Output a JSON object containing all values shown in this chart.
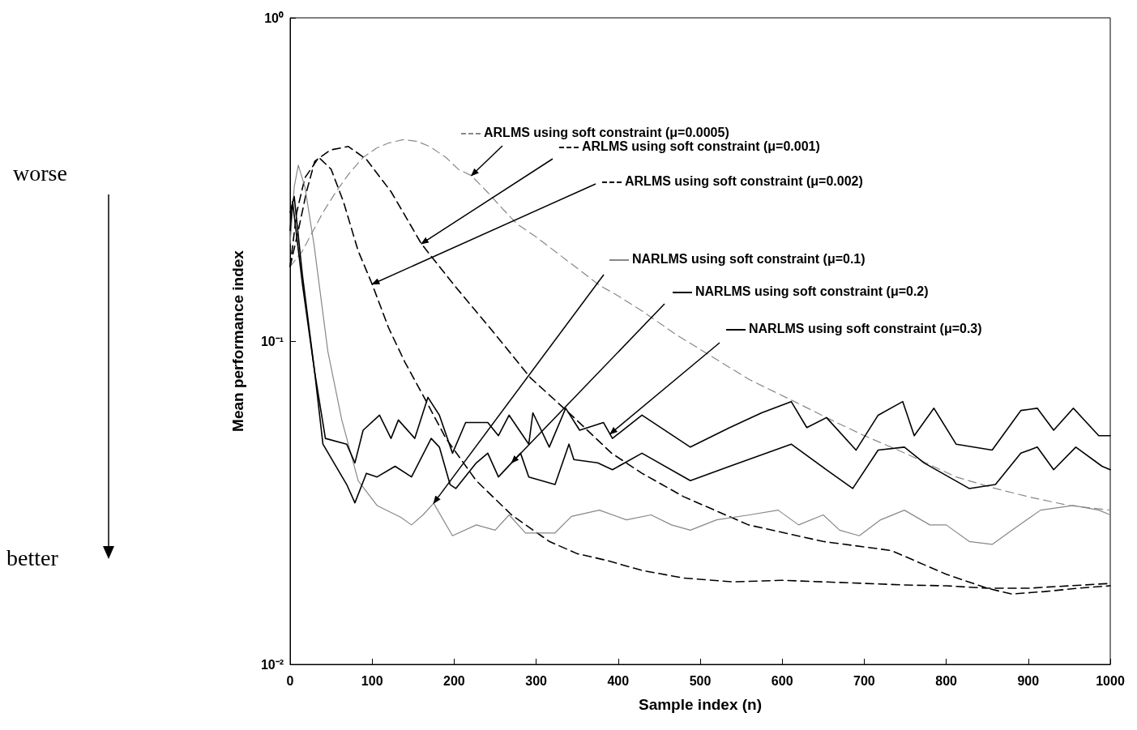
{
  "chart_data": {
    "type": "line",
    "xlabel": "Sample index (n)",
    "ylabel": "Mean performance index",
    "log": "y",
    "xlim": [
      0,
      1000
    ],
    "xticks": [
      0,
      100,
      200,
      300,
      400,
      500,
      600,
      700,
      800,
      900,
      1000
    ],
    "ylim": [
      0.01,
      1
    ],
    "yticks": [
      {
        "value": 0.01,
        "label": "10⁻²"
      },
      {
        "value": 0.1,
        "label": "10⁻¹"
      },
      {
        "value": 1,
        "label": "10⁰"
      }
    ],
    "annotations": [
      "worse",
      "better"
    ],
    "legend": "top right",
    "series": [
      {
        "name": "ARLMS using soft constraint (μ=0.0005)",
        "color": "#888888",
        "line_style": "dashed",
        "x": [
          0,
          15,
          27,
          40,
          56,
          72,
          89,
          105,
          120,
          138,
          155,
          170,
          190,
          205,
          221,
          240,
          260,
          277,
          300,
          326,
          350,
          377,
          400,
          429,
          470,
          516,
          560,
          615,
          660,
          700,
          750,
          812,
          860,
          900,
          950,
          1000
        ],
        "values": [
          0.17,
          0.19,
          0.217,
          0.25,
          0.29,
          0.33,
          0.37,
          0.395,
          0.41,
          0.42,
          0.415,
          0.4,
          0.37,
          0.34,
          0.325,
          0.29,
          0.255,
          0.23,
          0.21,
          0.187,
          0.168,
          0.149,
          0.138,
          0.124,
          0.105,
          0.089,
          0.076,
          0.065,
          0.057,
          0.051,
          0.045,
          0.038,
          0.035,
          0.033,
          0.031,
          0.03
        ]
      },
      {
        "name": "ARLMS using soft constraint (μ=0.001)",
        "color": "#000000",
        "line_style": "dashed",
        "x": [
          0,
          10,
          20,
          30,
          49,
          71,
          93,
          123,
          142,
          160,
          200,
          250,
          293,
          340,
          392,
          429,
          480,
          559,
          650,
          733,
          800,
          850,
          880,
          920,
          960,
          1000
        ],
        "values": [
          0.17,
          0.22,
          0.29,
          0.36,
          0.39,
          0.4,
          0.365,
          0.29,
          0.24,
          0.2,
          0.149,
          0.105,
          0.077,
          0.06,
          0.045,
          0.039,
          0.033,
          0.027,
          0.024,
          0.0225,
          0.019,
          0.0172,
          0.0165,
          0.0168,
          0.0172,
          0.0175
        ]
      },
      {
        "name": "ARLMS using soft constraint (μ=0.002)",
        "color": "#000000",
        "line_style": "dashed",
        "x": [
          0,
          8,
          18,
          35,
          50,
          65,
          83,
          100,
          120,
          140,
          162,
          190,
          227,
          270,
          316,
          350,
          385,
          430,
          480,
          540,
          600,
          650,
          700,
          750,
          800,
          850,
          900,
          950,
          1000
        ],
        "values": [
          0.17,
          0.25,
          0.32,
          0.37,
          0.34,
          0.27,
          0.19,
          0.15,
          0.11,
          0.086,
          0.068,
          0.05,
          0.037,
          0.029,
          0.024,
          0.022,
          0.021,
          0.0195,
          0.0185,
          0.018,
          0.0182,
          0.018,
          0.0178,
          0.0176,
          0.0175,
          0.0172,
          0.0172,
          0.0175,
          0.0178
        ]
      },
      {
        "name": "NARLMS using soft constraint (μ=0.1)",
        "color": "#888888",
        "line_style": "solid",
        "x": [
          0,
          5,
          10,
          18,
          29,
          46,
          63,
          83,
          106,
          135,
          148,
          162,
          175,
          198,
          227,
          250,
          267,
          287,
          323,
          343,
          377,
          410,
          440,
          465,
          488,
          520,
          560,
          595,
          620,
          650,
          670,
          694,
          720,
          749,
          780,
          800,
          828,
          856,
          880,
          915,
          955,
          986,
          1000
        ],
        "values": [
          0.2,
          0.3,
          0.35,
          0.3,
          0.2,
          0.093,
          0.057,
          0.037,
          0.031,
          0.0285,
          0.027,
          0.029,
          0.0315,
          0.025,
          0.027,
          0.026,
          0.029,
          0.0255,
          0.0255,
          0.0287,
          0.03,
          0.028,
          0.029,
          0.027,
          0.026,
          0.028,
          0.029,
          0.03,
          0.027,
          0.029,
          0.026,
          0.025,
          0.028,
          0.03,
          0.027,
          0.027,
          0.024,
          0.0235,
          0.026,
          0.03,
          0.031,
          0.03,
          0.029
        ]
      },
      {
        "name": "NARLMS using soft constraint (μ=0.2)",
        "color": "#000000",
        "line_style": "solid",
        "x": [
          0,
          3,
          15,
          30,
          40,
          69,
          79,
          93,
          106,
          128,
          148,
          172,
          182,
          195,
          202,
          227,
          241,
          254,
          281,
          291,
          323,
          340,
          346,
          375,
          393,
          429,
          488,
          536,
          611,
          654,
          686,
          717,
          749,
          773,
          828,
          860,
          891,
          911,
          931,
          958,
          990,
          1000
        ],
        "values": [
          0.22,
          0.27,
          0.15,
          0.08,
          0.048,
          0.036,
          0.0316,
          0.039,
          0.038,
          0.041,
          0.038,
          0.05,
          0.047,
          0.036,
          0.035,
          0.042,
          0.045,
          0.038,
          0.045,
          0.038,
          0.036,
          0.048,
          0.043,
          0.042,
          0.04,
          0.045,
          0.037,
          0.041,
          0.048,
          0.04,
          0.035,
          0.046,
          0.047,
          0.042,
          0.035,
          0.036,
          0.045,
          0.047,
          0.04,
          0.047,
          0.041,
          0.04
        ]
      },
      {
        "name": "NARLMS using soft constraint (μ=0.3)",
        "color": "#000000",
        "line_style": "solid",
        "x": [
          0,
          5,
          15,
          30,
          43,
          69,
          79,
          89,
          109,
          123,
          132,
          152,
          168,
          182,
          198,
          214,
          241,
          254,
          267,
          291,
          296,
          316,
          336,
          353,
          382,
          393,
          429,
          488,
          536,
          575,
          611,
          630,
          654,
          690,
          717,
          747,
          761,
          785,
          812,
          856,
          891,
          911,
          931,
          955,
          986,
          1000
        ],
        "values": [
          0.25,
          0.28,
          0.16,
          0.08,
          0.05,
          0.048,
          0.042,
          0.053,
          0.059,
          0.05,
          0.057,
          0.05,
          0.067,
          0.059,
          0.045,
          0.056,
          0.056,
          0.051,
          0.059,
          0.048,
          0.06,
          0.047,
          0.062,
          0.053,
          0.056,
          0.05,
          0.059,
          0.047,
          0.054,
          0.06,
          0.065,
          0.054,
          0.058,
          0.046,
          0.059,
          0.065,
          0.051,
          0.062,
          0.048,
          0.046,
          0.061,
          0.062,
          0.053,
          0.062,
          0.051,
          0.051
        ]
      }
    ]
  }
}
